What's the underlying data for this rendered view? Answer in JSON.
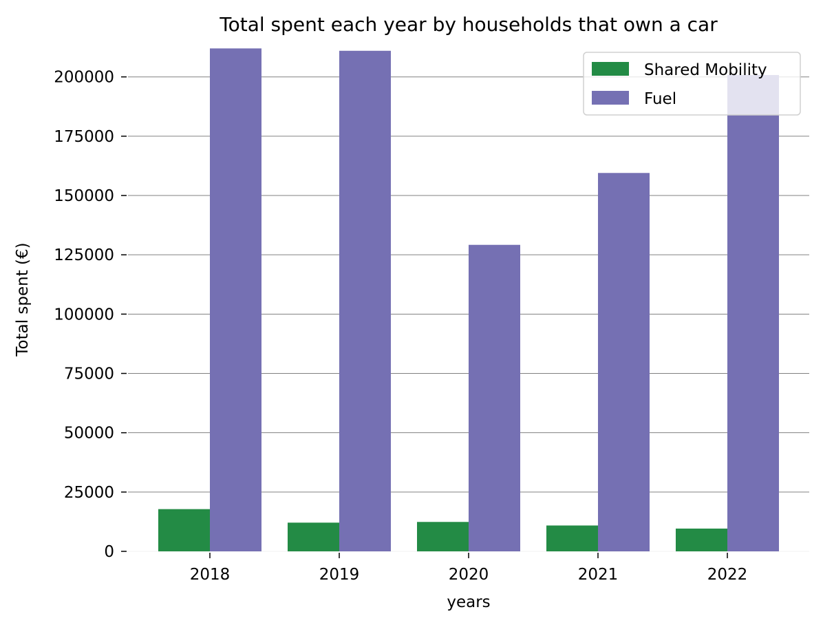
{
  "chart_data": {
    "type": "bar",
    "title": "Total spent each year by households that own a car",
    "xlabel": "years",
    "ylabel": "Total spent (€)",
    "categories": [
      "2018",
      "2019",
      "2020",
      "2021",
      "2022"
    ],
    "series": [
      {
        "name": "Shared Mobility",
        "color": "#238b45",
        "values": [
          17800,
          12100,
          12400,
          10900,
          9600
        ]
      },
      {
        "name": "Fuel",
        "color": "#7570b3",
        "values": [
          212000,
          211000,
          129200,
          159500,
          200800
        ]
      }
    ],
    "ylim": [
      0,
      215000
    ],
    "yticks": [
      0,
      25000,
      50000,
      75000,
      100000,
      125000,
      150000,
      175000,
      200000
    ],
    "ytick_labels": [
      "0",
      "25000",
      "50000",
      "75000",
      "100000",
      "125000",
      "150000",
      "175000",
      "200000"
    ],
    "grid": "y",
    "gridline_color": "#808080",
    "legend_position": "top-right"
  }
}
